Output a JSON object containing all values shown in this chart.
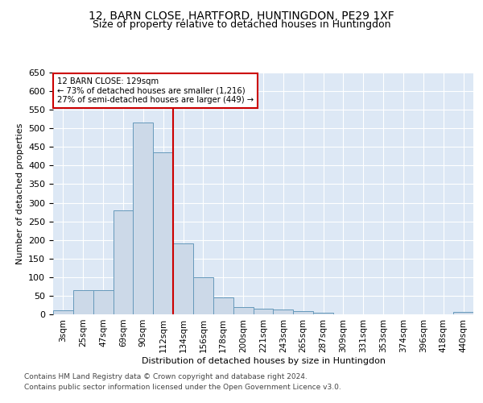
{
  "title1": "12, BARN CLOSE, HARTFORD, HUNTINGDON, PE29 1XF",
  "title2": "Size of property relative to detached houses in Huntingdon",
  "xlabel": "Distribution of detached houses by size in Huntingdon",
  "ylabel": "Number of detached properties",
  "categories": [
    "3sqm",
    "25sqm",
    "47sqm",
    "69sqm",
    "90sqm",
    "112sqm",
    "134sqm",
    "156sqm",
    "178sqm",
    "200sqm",
    "221sqm",
    "243sqm",
    "265sqm",
    "287sqm",
    "309sqm",
    "331sqm",
    "353sqm",
    "374sqm",
    "396sqm",
    "418sqm",
    "440sqm"
  ],
  "values": [
    10,
    65,
    65,
    280,
    515,
    435,
    190,
    100,
    45,
    20,
    15,
    13,
    8,
    5,
    0,
    0,
    0,
    0,
    0,
    0,
    6
  ],
  "bar_color": "#ccd9e8",
  "bar_edge_color": "#6699bb",
  "property_line_label": "12 BARN CLOSE: 129sqm",
  "annotation_line1": "← 73% of detached houses are smaller (1,216)",
  "annotation_line2": "27% of semi-detached houses are larger (449) →",
  "vline_color": "#cc0000",
  "footnote1": "Contains HM Land Registry data © Crown copyright and database right 2024.",
  "footnote2": "Contains public sector information licensed under the Open Government Licence v3.0.",
  "ylim": [
    0,
    650
  ],
  "yticks": [
    0,
    50,
    100,
    150,
    200,
    250,
    300,
    350,
    400,
    450,
    500,
    550,
    600,
    650
  ],
  "bg_color": "#dde8f5",
  "title_fontsize": 10,
  "subtitle_fontsize": 9
}
